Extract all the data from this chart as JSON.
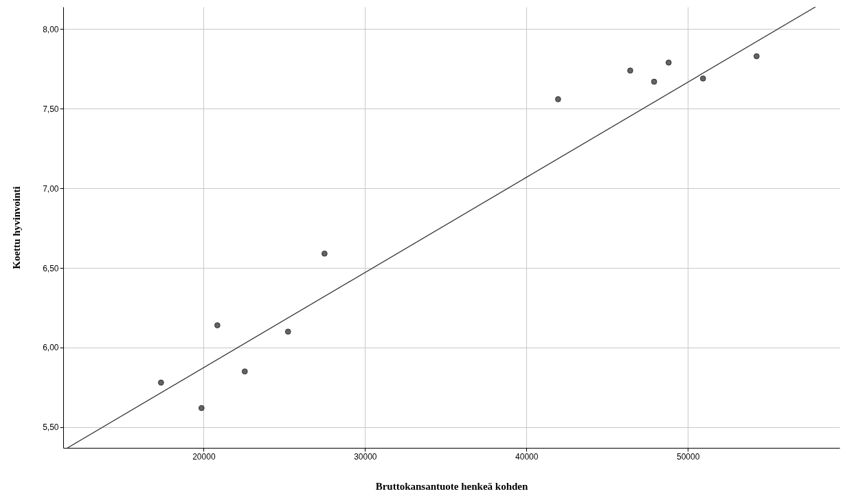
{
  "chart_data": {
    "type": "scatter",
    "xlabel": "Bruttokansantuote henkeä kohden",
    "ylabel": "Koettu hyvinvointi",
    "xlim": [
      11300,
      59400
    ],
    "ylim": [
      5.37,
      8.14
    ],
    "xticks": [
      20000,
      30000,
      40000,
      50000
    ],
    "yticks": [
      {
        "value": 5.5,
        "label": "5,50"
      },
      {
        "value": 6,
        "label": "6,00"
      },
      {
        "value": 6.5,
        "label": "6,50"
      },
      {
        "value": 7,
        "label": "7,00"
      },
      {
        "value": 7.5,
        "label": "7,50"
      },
      {
        "value": 8,
        "label": "8,00"
      }
    ],
    "grid": true,
    "series": [
      {
        "marker": "circle",
        "color": "#636363",
        "x": [
          17360,
          19870,
          20850,
          22550,
          25230,
          27490,
          41960,
          46430,
          47910,
          48810,
          50940,
          54260
        ],
        "values": [
          5.78,
          5.62,
          6.14,
          5.85,
          6.1,
          6.59,
          7.56,
          7.74,
          7.67,
          7.79,
          7.69,
          7.83
        ]
      },
      {
        "type": "line",
        "color": "#333333",
        "x": [
          11570,
          57910
        ],
        "values": [
          5.37,
          8.14
        ]
      }
    ]
  }
}
